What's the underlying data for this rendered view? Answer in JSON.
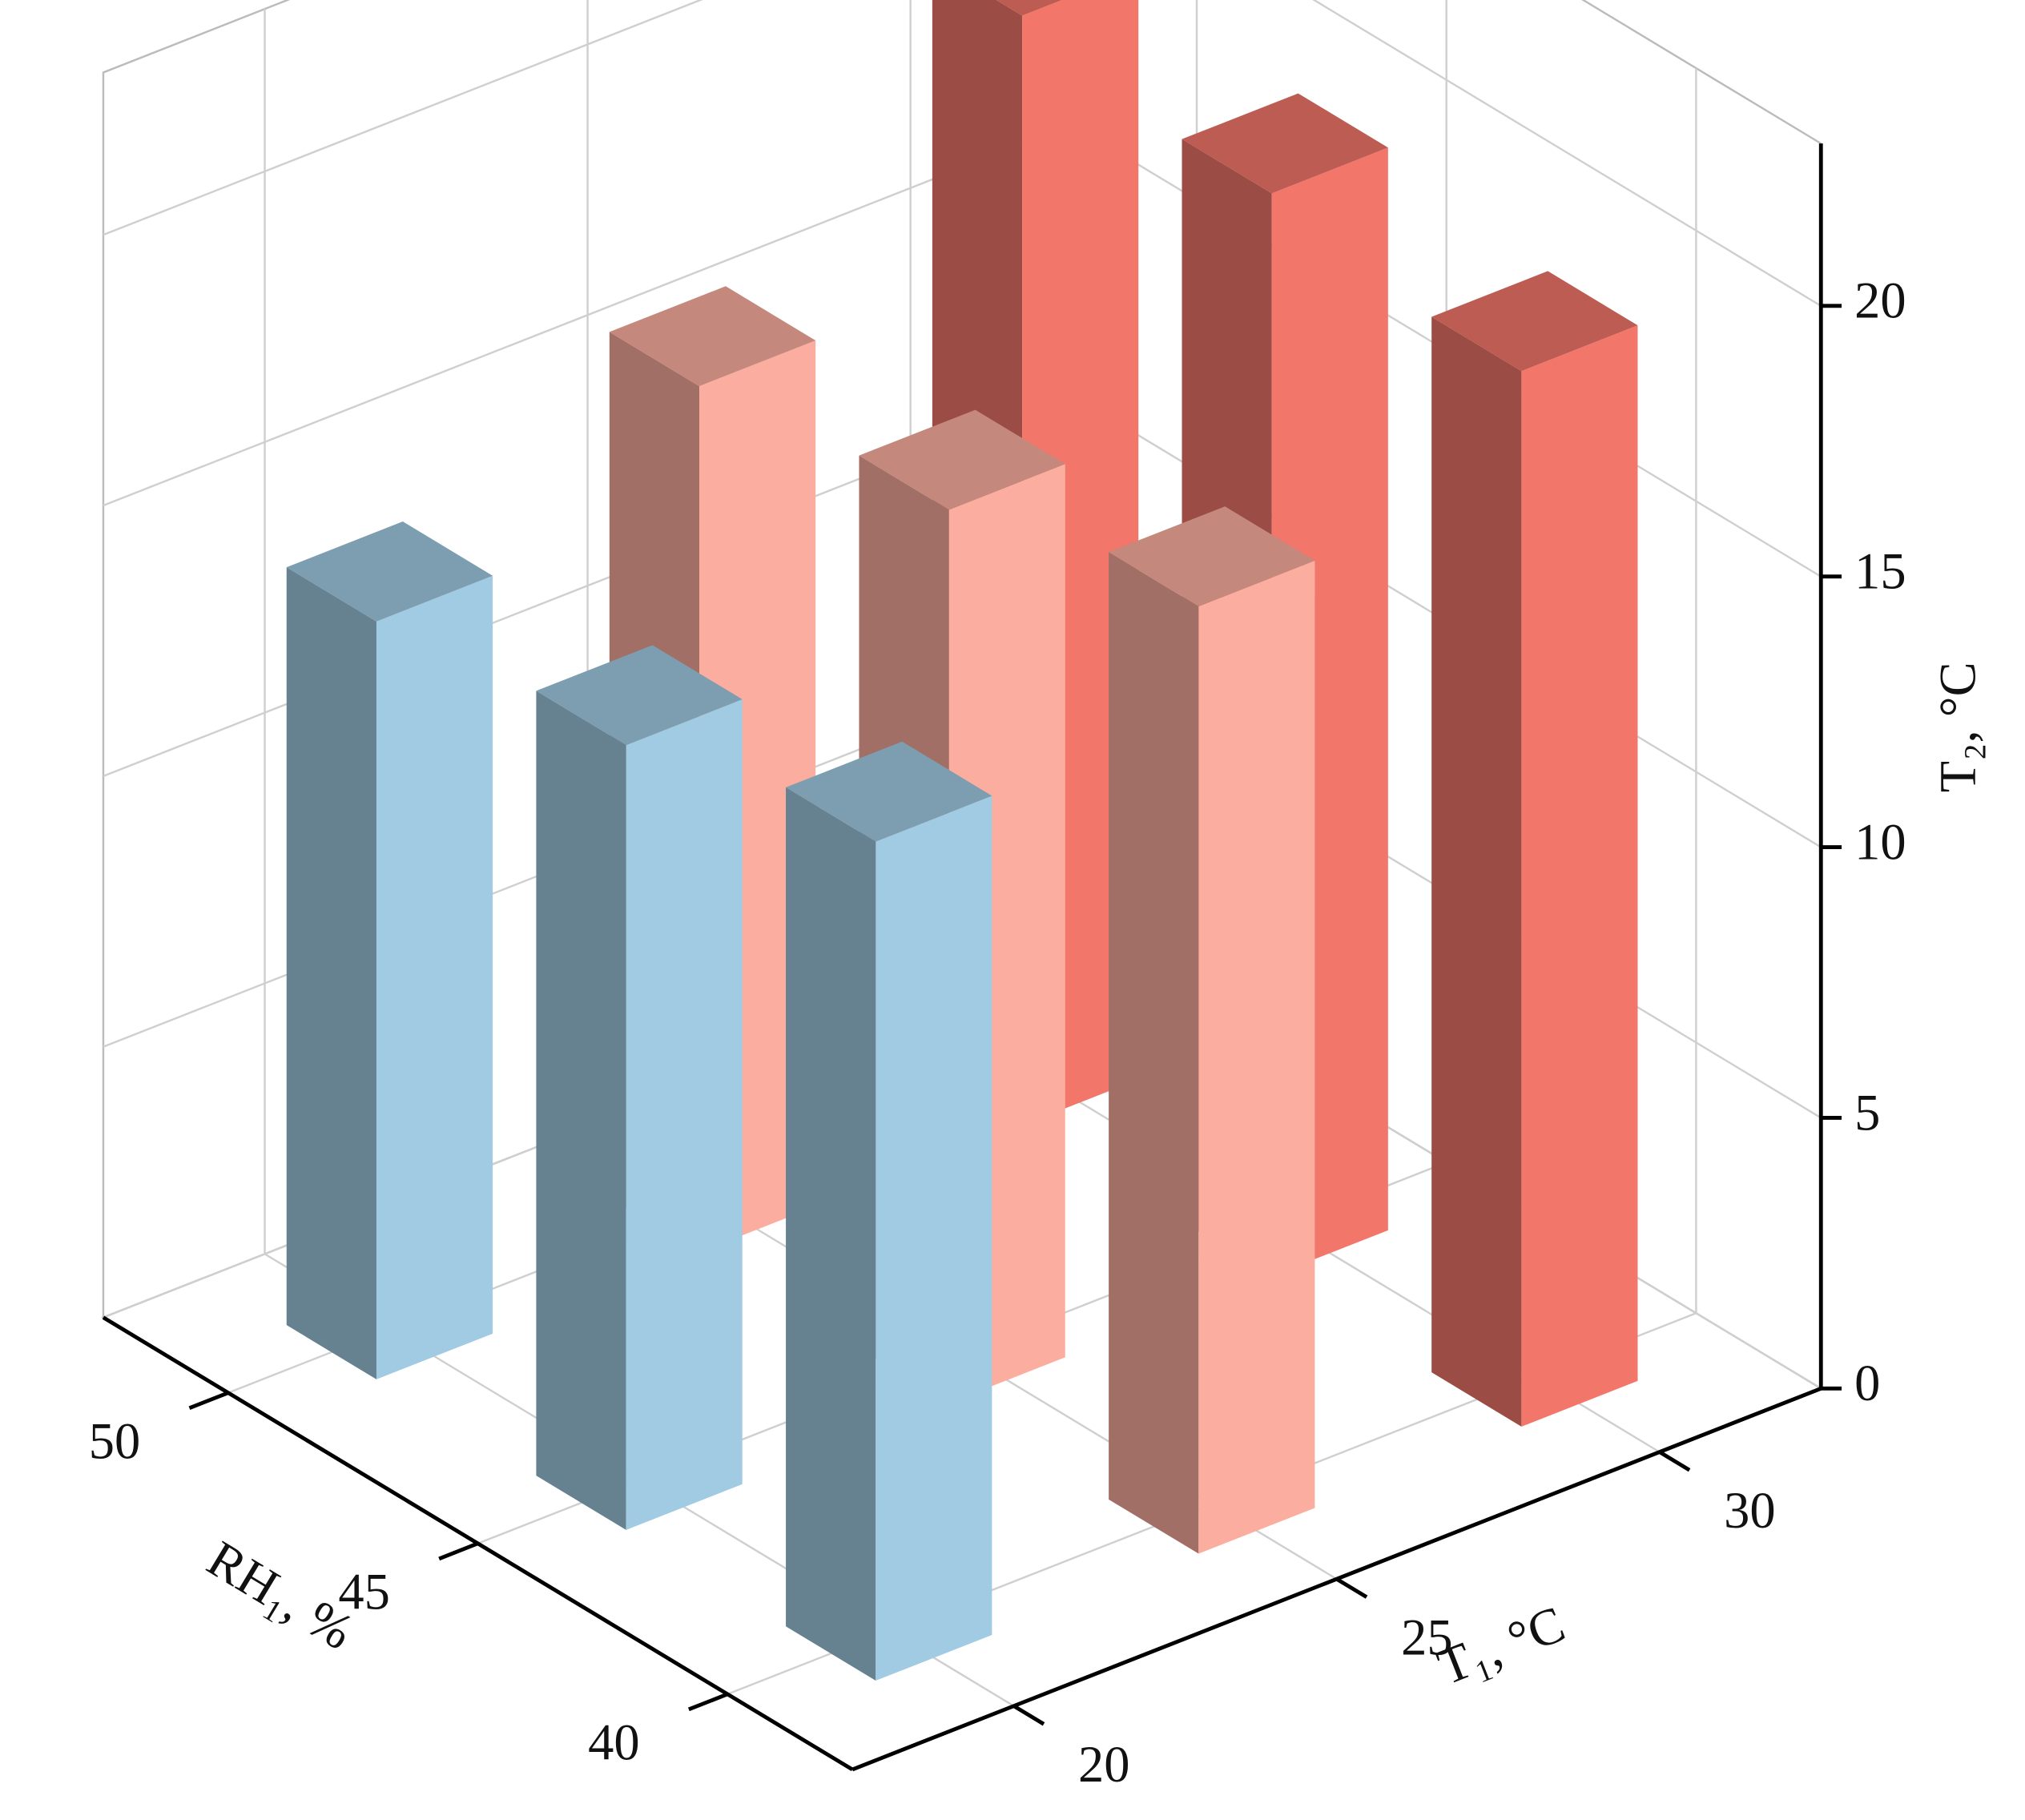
{
  "chart_data": {
    "type": "bar3d",
    "xlabel": "T₁, °C",
    "ylabel": "RH₁, %",
    "zlabel": "T₂, °C",
    "x_categories": [
      "20",
      "25",
      "30"
    ],
    "y_categories": [
      "40",
      "45",
      "50"
    ],
    "series": [
      {
        "color": "#a0cbe2",
        "values": [
          15.5,
          14.5,
          14
        ]
      },
      {
        "color": "#fbae9f",
        "values": [
          17.5,
          16.5,
          16
        ]
      },
      {
        "color": "#f2766a",
        "values": [
          19.5,
          20,
          20.5
        ]
      }
    ],
    "zlim": [
      0,
      23
    ],
    "zticks": [
      0,
      5,
      10,
      15,
      20
    ],
    "grid": true
  }
}
